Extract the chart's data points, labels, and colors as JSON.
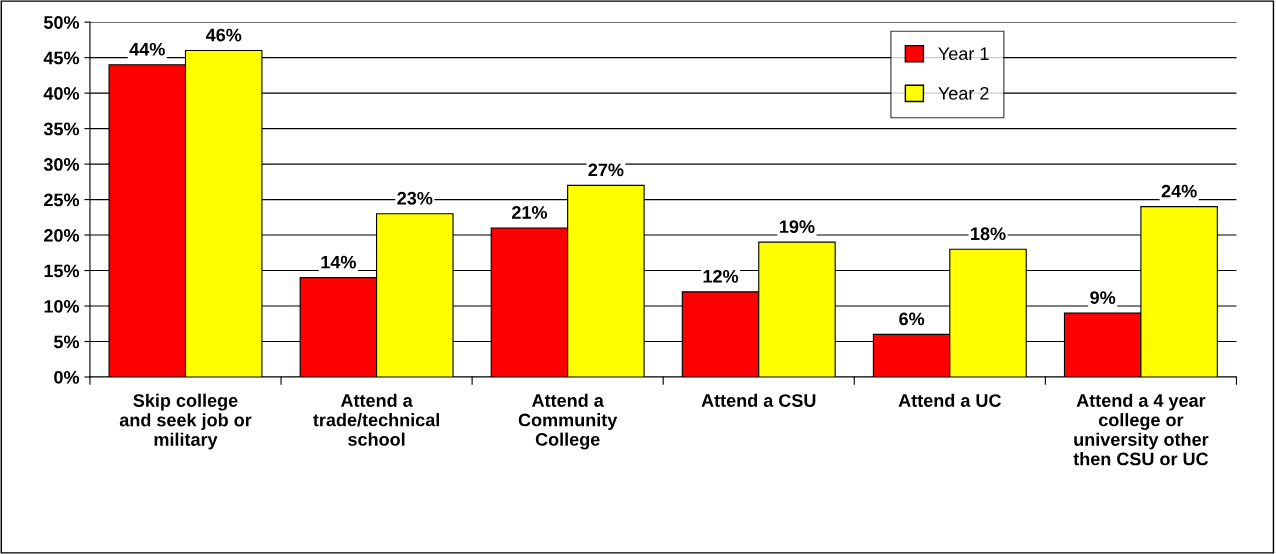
{
  "chart_data": {
    "type": "bar",
    "categories": [
      "Skip college\nand seek job or\nmilitary",
      "Attend a\ntrade/technical\nschool",
      "Attend a\nCommunity\nCollege",
      "Attend a CSU",
      "Attend a UC",
      "Attend a 4 year\ncollege or\nuniversity other\nthen CSU or UC"
    ],
    "series": [
      {
        "name": "Year 1",
        "color": "#ff0000",
        "values": [
          44,
          14,
          21,
          12,
          6,
          9
        ]
      },
      {
        "name": "Year 2",
        "color": "#ffff00",
        "values": [
          46,
          23,
          27,
          19,
          18,
          24
        ]
      }
    ],
    "ylim": [
      0,
      50
    ],
    "yticks": [
      {
        "value": 0,
        "label": "0%"
      },
      {
        "value": 5,
        "label": "5%"
      },
      {
        "value": 10,
        "label": "10%"
      },
      {
        "value": 15,
        "label": "15%"
      },
      {
        "value": 20,
        "label": "20%"
      },
      {
        "value": 25,
        "label": "25%"
      },
      {
        "value": 30,
        "label": "30%"
      },
      {
        "value": 35,
        "label": "35%"
      },
      {
        "value": 40,
        "label": "40%"
      },
      {
        "value": 45,
        "label": "45%"
      },
      {
        "value": 50,
        "label": "50%"
      }
    ],
    "value_labels": [
      [
        "44%",
        "14%",
        "21%",
        "12%",
        "6%",
        "9%"
      ],
      [
        "46%",
        "23%",
        "27%",
        "19%",
        "18%",
        "24%"
      ]
    ],
    "grid": "y",
    "legend": "top right"
  }
}
